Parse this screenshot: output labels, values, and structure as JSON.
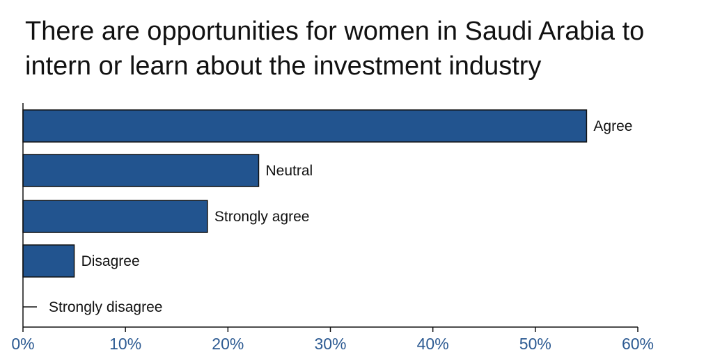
{
  "chart_data": {
    "type": "bar",
    "orientation": "horizontal",
    "title": "There are opportunities for women in Saudi Arabia to intern or learn about the investment industry",
    "categories": [
      "Agree",
      "Neutral",
      "Strongly agree",
      "Disagree",
      "Strongly disagree"
    ],
    "values": [
      55,
      23,
      18,
      5,
      0
    ],
    "xlim": [
      0,
      60
    ],
    "xticks": [
      0,
      10,
      20,
      30,
      40,
      50,
      60
    ],
    "xtick_labels": [
      "0%",
      "10%",
      "20%",
      "30%",
      "40%",
      "50%",
      "60%"
    ],
    "xlabel": "",
    "ylabel": "",
    "grid": false,
    "colors": {
      "bar_fill": "#22548f",
      "bar_stroke": "#111111",
      "axis": "#111111",
      "tick_label": "#2c5a92"
    }
  }
}
